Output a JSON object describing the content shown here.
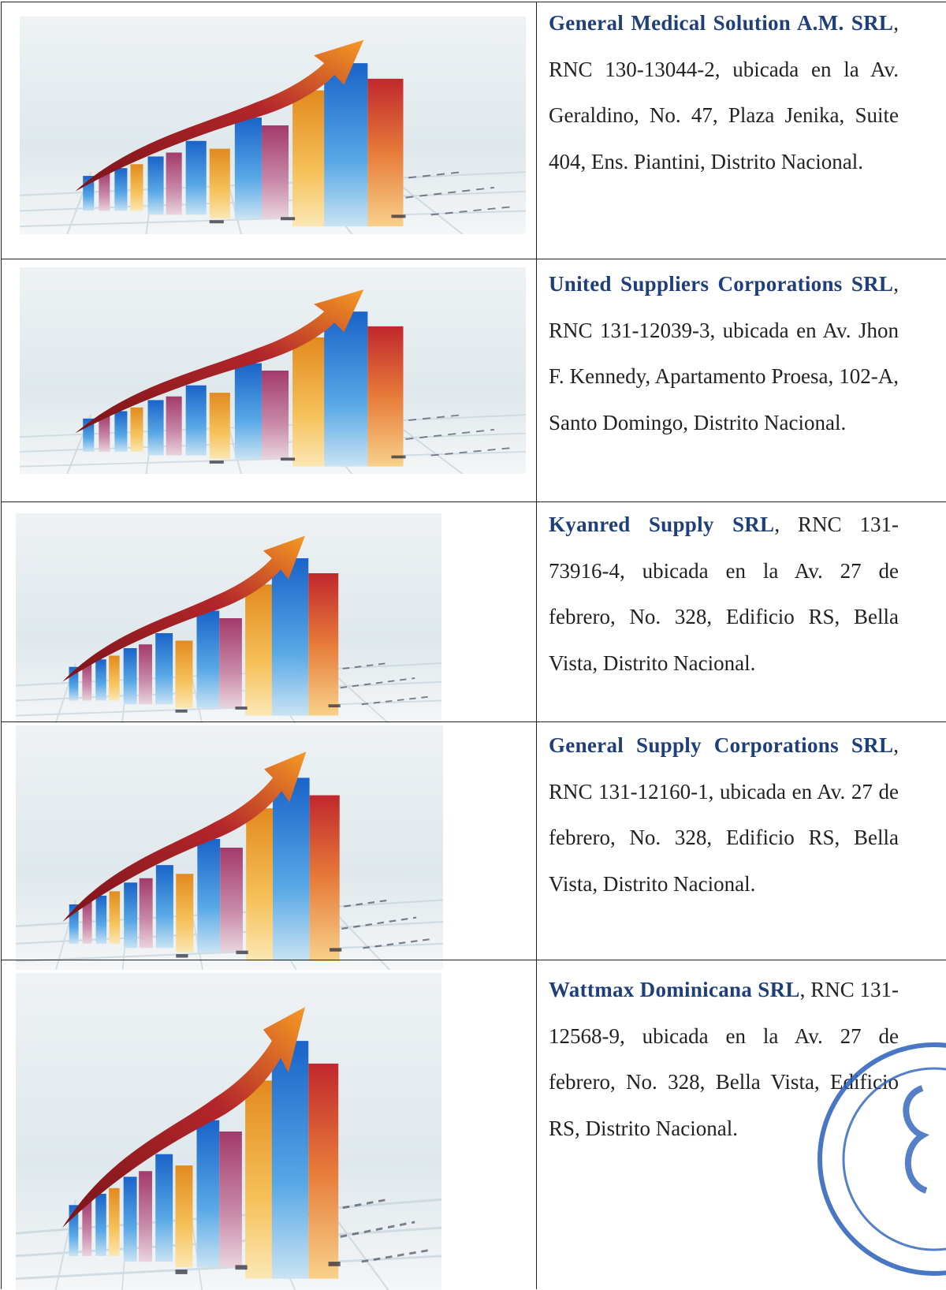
{
  "table": {
    "rows": [
      {
        "name": "General Medical Solution A.M. SRL",
        "details": ", RNC 130-13044-2, ubicada en la Av. Geraldino, No. 47, Plaza Jenika, Suite 404, Ens. Piantini, Distrito Nacional."
      },
      {
        "name": "United Suppliers Corporations SRL",
        "details": ", RNC 131-12039-3, ubicada en Av. Jhon F. Kennedy, Apartamento Proesa, 102-A, Santo Domingo, Distrito Nacional."
      },
      {
        "name": "Kyanred Supply SRL",
        "details": ", RNC 131-73916-4, ubicada en la Av. 27 de febrero, No. 328, Edificio RS, Bella Vista, Distrito Nacional."
      },
      {
        "name": "General Supply Corporations SRL",
        "details": ", RNC 131-12160-1, ubicada en Av. 27 de febrero, No. 328, Edificio RS, Bella Vista, Distrito Nacional."
      },
      {
        "name": "Wattmax Dominicana SRL",
        "details": ", RNC 131-12568-9, ubicada en la Av. 27 de febrero, No. 328, Bella Vista, Edificio RS, Distrito Nacional."
      }
    ]
  }
}
